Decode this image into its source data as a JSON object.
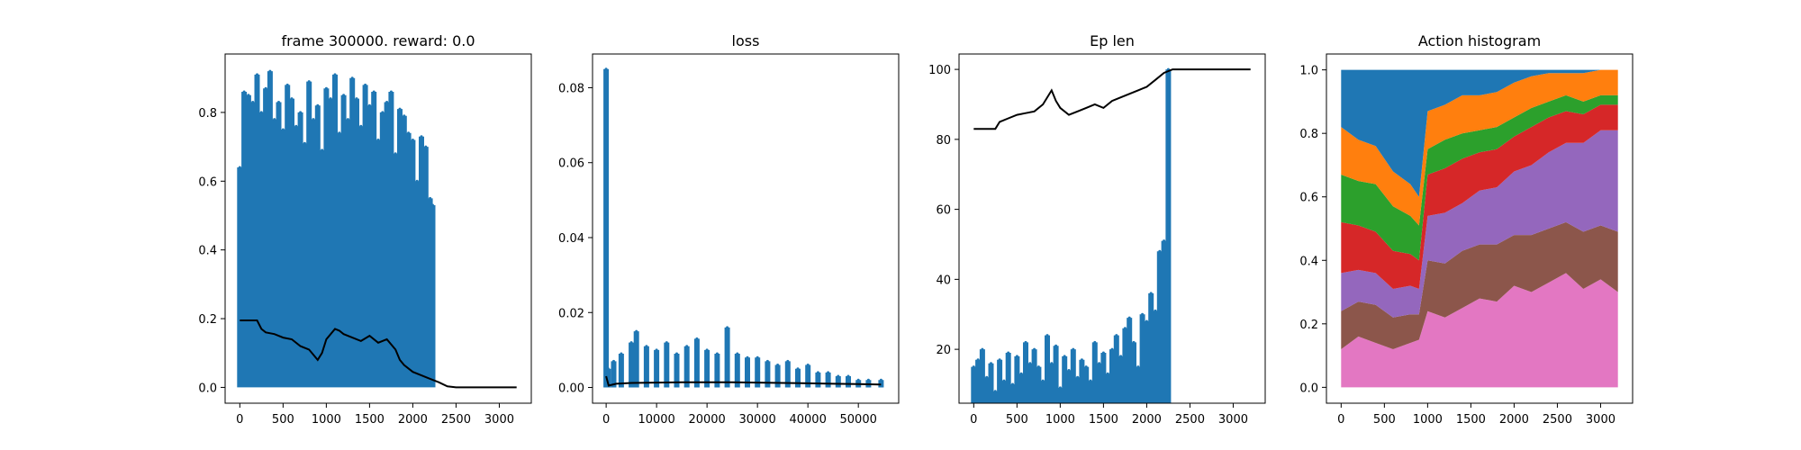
{
  "chart_data": [
    {
      "type": "line",
      "title": "frame 300000. reward: 0.0",
      "xlim": [
        -170,
        3370
      ],
      "ylim": [
        -0.046,
        0.97
      ],
      "xticks": [
        0,
        500,
        1000,
        1500,
        2000,
        2500,
        3000
      ],
      "yticks": [
        0.0,
        0.2,
        0.4,
        0.6,
        0.8
      ],
      "ytick_labels": [
        "0.0",
        "0.2",
        "0.4",
        "0.6",
        "0.8"
      ],
      "series": [
        {
          "role": "raw",
          "color": "#1f77b4",
          "x": [
            0,
            50,
            100,
            150,
            200,
            250,
            300,
            350,
            400,
            450,
            500,
            550,
            600,
            650,
            700,
            750,
            800,
            850,
            900,
            950,
            1000,
            1050,
            1100,
            1150,
            1200,
            1250,
            1300,
            1350,
            1400,
            1450,
            1500,
            1550,
            1600,
            1650,
            1700,
            1750,
            1800,
            1850,
            1900,
            1950,
            2000,
            2050,
            2100,
            2150,
            2200,
            2230
          ],
          "y": [
            0.64,
            0.86,
            0.85,
            0.83,
            0.91,
            0.8,
            0.87,
            0.92,
            0.78,
            0.83,
            0.75,
            0.88,
            0.84,
            0.76,
            0.8,
            0.71,
            0.89,
            0.78,
            0.82,
            0.69,
            0.87,
            0.84,
            0.91,
            0.74,
            0.85,
            0.78,
            0.9,
            0.84,
            0.76,
            0.88,
            0.82,
            0.86,
            0.72,
            0.8,
            0.83,
            0.86,
            0.68,
            0.81,
            0.79,
            0.74,
            0.72,
            0.6,
            0.73,
            0.7,
            0.55,
            0.53
          ]
        },
        {
          "role": "moving average",
          "color": "#000000",
          "x": [
            0,
            200,
            250,
            300,
            400,
            500,
            600,
            700,
            800,
            900,
            950,
            1000,
            1100,
            1150,
            1200,
            1300,
            1400,
            1500,
            1600,
            1700,
            1800,
            1850,
            1900,
            2000,
            2100,
            2200,
            2300,
            2400,
            2500,
            3200
          ],
          "y": [
            0.195,
            0.195,
            0.17,
            0.16,
            0.155,
            0.145,
            0.14,
            0.12,
            0.11,
            0.08,
            0.1,
            0.14,
            0.17,
            0.165,
            0.155,
            0.145,
            0.135,
            0.15,
            0.13,
            0.14,
            0.11,
            0.08,
            0.065,
            0.045,
            0.035,
            0.025,
            0.015,
            0.003,
            0.0,
            0.0
          ]
        }
      ]
    },
    {
      "type": "line",
      "title": "loss",
      "xlim": [
        -2700,
        58000
      ],
      "ylim": [
        -0.0042,
        0.089
      ],
      "xticks": [
        0,
        10000,
        20000,
        30000,
        40000,
        50000
      ],
      "yticks": [
        0.0,
        0.02,
        0.04,
        0.06,
        0.08
      ],
      "ytick_labels": [
        "0.00",
        "0.02",
        "0.04",
        "0.06",
        "0.08"
      ],
      "series": [
        {
          "role": "raw",
          "color": "#1f77b4",
          "x": [
            0,
            200,
            400,
            1500,
            3000,
            5000,
            6000,
            8000,
            10000,
            12000,
            14000,
            16000,
            18000,
            20000,
            22000,
            24000,
            26000,
            28000,
            30000,
            32000,
            34000,
            36000,
            38000,
            40000,
            42000,
            44000,
            46000,
            48000,
            50000,
            52000,
            54500
          ],
          "y": [
            0.085,
            0.004,
            0.005,
            0.007,
            0.009,
            0.012,
            0.015,
            0.011,
            0.01,
            0.012,
            0.009,
            0.011,
            0.013,
            0.01,
            0.009,
            0.016,
            0.009,
            0.008,
            0.008,
            0.007,
            0.006,
            0.007,
            0.005,
            0.006,
            0.004,
            0.004,
            0.003,
            0.003,
            0.002,
            0.002,
            0.002
          ]
        },
        {
          "role": "moving average",
          "color": "#000000",
          "x": [
            0,
            500,
            2000,
            5000,
            10000,
            15000,
            20000,
            25000,
            30000,
            35000,
            40000,
            45000,
            50000,
            54500
          ],
          "y": [
            0.003,
            0.0005,
            0.001,
            0.0012,
            0.0013,
            0.0014,
            0.0014,
            0.0014,
            0.0013,
            0.0012,
            0.0011,
            0.001,
            0.0009,
            0.0008
          ]
        }
      ]
    },
    {
      "type": "line",
      "title": "Ep len",
      "xlim": [
        -170,
        3370
      ],
      "ylim": [
        4.6,
        104.4
      ],
      "xticks": [
        0,
        500,
        1000,
        1500,
        2000,
        2500,
        3000
      ],
      "yticks": [
        20,
        40,
        60,
        80,
        100
      ],
      "ytick_labels": [
        "20",
        "40",
        "60",
        "80",
        "100"
      ],
      "series": [
        {
          "role": "raw",
          "color": "#1f77b4",
          "x": [
            0,
            50,
            100,
            150,
            200,
            250,
            300,
            350,
            400,
            450,
            500,
            550,
            600,
            650,
            700,
            750,
            800,
            850,
            900,
            950,
            1000,
            1050,
            1100,
            1150,
            1200,
            1250,
            1300,
            1350,
            1400,
            1450,
            1500,
            1550,
            1600,
            1650,
            1700,
            1750,
            1800,
            1850,
            1900,
            1950,
            2000,
            2050,
            2100,
            2150,
            2200,
            2250
          ],
          "y": [
            15,
            17,
            20,
            12,
            16,
            8,
            17,
            11,
            19,
            10,
            18,
            13,
            22,
            16,
            20,
            15,
            11,
            24,
            16,
            21,
            9,
            18,
            14,
            20,
            12,
            17,
            15,
            11,
            22,
            16,
            19,
            13,
            20,
            24,
            18,
            26,
            29,
            22,
            15,
            30,
            28,
            36,
            31,
            48,
            51,
            100
          ]
        },
        {
          "role": "moving average",
          "color": "#000000",
          "x": [
            0,
            250,
            300,
            400,
            500,
            600,
            700,
            800,
            900,
            950,
            1000,
            1100,
            1200,
            1300,
            1400,
            1500,
            1600,
            1700,
            1800,
            1900,
            2000,
            2100,
            2200,
            2300,
            2400,
            3200
          ],
          "y": [
            83,
            83,
            85,
            86,
            87,
            87.5,
            88,
            90,
            94,
            91,
            89,
            87,
            88,
            89,
            90,
            89,
            91,
            92,
            93,
            94,
            95,
            97,
            99,
            100,
            100,
            100
          ]
        }
      ]
    },
    {
      "type": "area",
      "title": "Action histogram",
      "xlim": [
        -170,
        3370
      ],
      "ylim": [
        -0.05,
        1.05
      ],
      "xticks": [
        0,
        500,
        1000,
        1500,
        2000,
        2500,
        3000
      ],
      "yticks": [
        0.0,
        0.2,
        0.4,
        0.6,
        0.8,
        1.0
      ],
      "ytick_labels": [
        "0.0",
        "0.2",
        "0.4",
        "0.6",
        "0.8",
        "1.0"
      ],
      "x": [
        0,
        200,
        400,
        600,
        800,
        900,
        1000,
        1200,
        1400,
        1600,
        1800,
        2000,
        2200,
        2400,
        2600,
        2800,
        3000,
        3200
      ],
      "series": [
        {
          "color": "#e377c2",
          "values": [
            0.12,
            0.16,
            0.14,
            0.12,
            0.14,
            0.15,
            0.24,
            0.22,
            0.25,
            0.28,
            0.27,
            0.32,
            0.3,
            0.33,
            0.36,
            0.31,
            0.34,
            0.3
          ]
        },
        {
          "color": "#8c564b",
          "values": [
            0.12,
            0.11,
            0.12,
            0.1,
            0.09,
            0.08,
            0.16,
            0.17,
            0.18,
            0.17,
            0.18,
            0.16,
            0.18,
            0.17,
            0.16,
            0.18,
            0.17,
            0.19
          ]
        },
        {
          "color": "#9467bd",
          "values": [
            0.12,
            0.1,
            0.1,
            0.09,
            0.09,
            0.08,
            0.14,
            0.16,
            0.15,
            0.17,
            0.18,
            0.2,
            0.22,
            0.24,
            0.25,
            0.28,
            0.3,
            0.32
          ]
        },
        {
          "color": "#d62728",
          "values": [
            0.16,
            0.14,
            0.13,
            0.12,
            0.1,
            0.09,
            0.13,
            0.14,
            0.14,
            0.12,
            0.12,
            0.11,
            0.12,
            0.11,
            0.1,
            0.09,
            0.08,
            0.08
          ]
        },
        {
          "color": "#2ca02c",
          "values": [
            0.15,
            0.14,
            0.15,
            0.14,
            0.12,
            0.11,
            0.08,
            0.09,
            0.08,
            0.07,
            0.07,
            0.06,
            0.06,
            0.05,
            0.05,
            0.04,
            0.03,
            0.03
          ]
        },
        {
          "color": "#ff7f0e",
          "values": [
            0.15,
            0.13,
            0.12,
            0.11,
            0.1,
            0.09,
            0.12,
            0.11,
            0.12,
            0.11,
            0.11,
            0.11,
            0.1,
            0.09,
            0.07,
            0.09,
            0.08,
            0.08
          ]
        },
        {
          "color": "#1f77b4",
          "values": [
            0.18,
            0.22,
            0.24,
            0.32,
            0.36,
            0.4,
            0.13,
            0.11,
            0.08,
            0.08,
            0.07,
            0.04,
            0.02,
            0.01,
            0.01,
            0.01,
            0.0,
            0.0
          ]
        }
      ]
    }
  ]
}
